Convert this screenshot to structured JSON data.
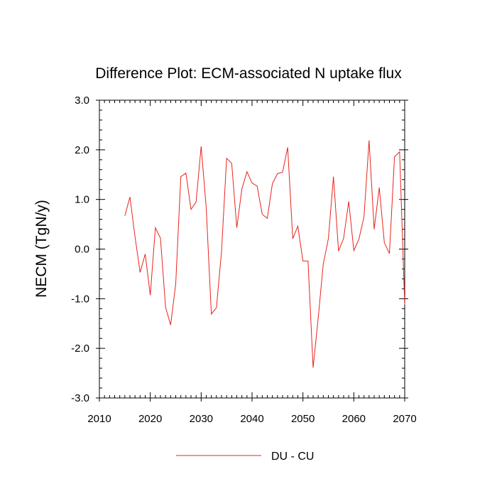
{
  "chart_data": {
    "type": "line",
    "title": "Difference Plot: ECM-associated N uptake flux",
    "xlabel": "",
    "ylabel": "NECM  (TgN/y)",
    "xlim": [
      2010,
      2070
    ],
    "ylim": [
      -3.0,
      3.0
    ],
    "x_ticks": [
      2010,
      2020,
      2030,
      2040,
      2050,
      2060,
      2070
    ],
    "x_tick_labels": [
      "2010",
      "2020",
      "2030",
      "2040",
      "2050",
      "2060",
      "2070"
    ],
    "y_ticks": [
      -3.0,
      -2.0,
      -1.0,
      0.0,
      1.0,
      2.0,
      3.0
    ],
    "y_tick_labels": [
      "-3.0",
      "-2.0",
      "-1.0",
      "0.0",
      "1.0",
      "2.0",
      "3.0"
    ],
    "grid": false,
    "legend_position": "bottom-center",
    "colors": {
      "series": "#e8231c",
      "axes": "#000000",
      "background": "#ffffff"
    },
    "series": [
      {
        "name": "DU - CU",
        "x": [
          2015,
          2016,
          2017,
          2018,
          2019,
          2020,
          2021,
          2022,
          2023,
          2024,
          2025,
          2026,
          2027,
          2028,
          2029,
          2030,
          2031,
          2032,
          2033,
          2034,
          2035,
          2036,
          2037,
          2038,
          2039,
          2040,
          2041,
          2042,
          2043,
          2044,
          2045,
          2046,
          2047,
          2048,
          2049,
          2050,
          2051,
          2052,
          2053,
          2054,
          2055,
          2056,
          2057,
          2058,
          2059,
          2060,
          2061,
          2062,
          2063,
          2064,
          2065,
          2066,
          2067,
          2068,
          2069,
          2070
        ],
        "values": [
          0.67,
          1.05,
          0.25,
          -0.47,
          -0.1,
          -0.93,
          0.43,
          0.22,
          -1.17,
          -1.53,
          -0.7,
          1.46,
          1.53,
          0.8,
          0.95,
          2.07,
          0.82,
          -1.31,
          -1.18,
          -0.05,
          1.83,
          1.73,
          0.43,
          1.21,
          1.56,
          1.33,
          1.27,
          0.7,
          0.62,
          1.32,
          1.52,
          1.55,
          2.05,
          0.21,
          0.46,
          -0.24,
          -0.24,
          -2.39,
          -1.39,
          -0.3,
          0.21,
          1.46,
          -0.04,
          0.22,
          0.96,
          -0.03,
          0.2,
          0.65,
          2.19,
          0.4,
          1.24,
          0.13,
          -0.09,
          1.86,
          1.96,
          -1.12
        ]
      }
    ]
  }
}
